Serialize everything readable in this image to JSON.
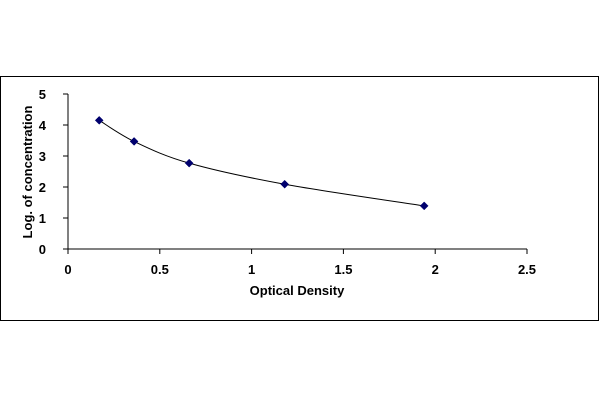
{
  "chart_data": {
    "type": "scatter",
    "title": "",
    "xlabel": "Optical Density",
    "ylabel": "Log. of concentration",
    "xlim": [
      0,
      2.5
    ],
    "ylim": [
      0,
      5
    ],
    "xticks": [
      0,
      0.5,
      1,
      1.5,
      2,
      2.5
    ],
    "xtick_labels": [
      "0",
      "0.5",
      "1",
      "1.5",
      "2",
      "2.5"
    ],
    "yticks": [
      0,
      1,
      2,
      3,
      4,
      5
    ],
    "ytick_labels": [
      "0",
      "1",
      "2",
      "3",
      "4",
      "5"
    ],
    "grid": false,
    "legend": "none",
    "trendline": "smooth curve through points",
    "series": [
      {
        "x": [
          0.17,
          0.36,
          0.66,
          1.18,
          1.94
        ],
        "y": [
          4.15,
          3.47,
          2.77,
          2.09,
          1.39
        ],
        "marker": "diamond",
        "color": "#00006e"
      }
    ],
    "colors": {
      "marker": "#00006e",
      "curve": "#000000",
      "axis": "#000000",
      "frame": "#000000"
    }
  }
}
